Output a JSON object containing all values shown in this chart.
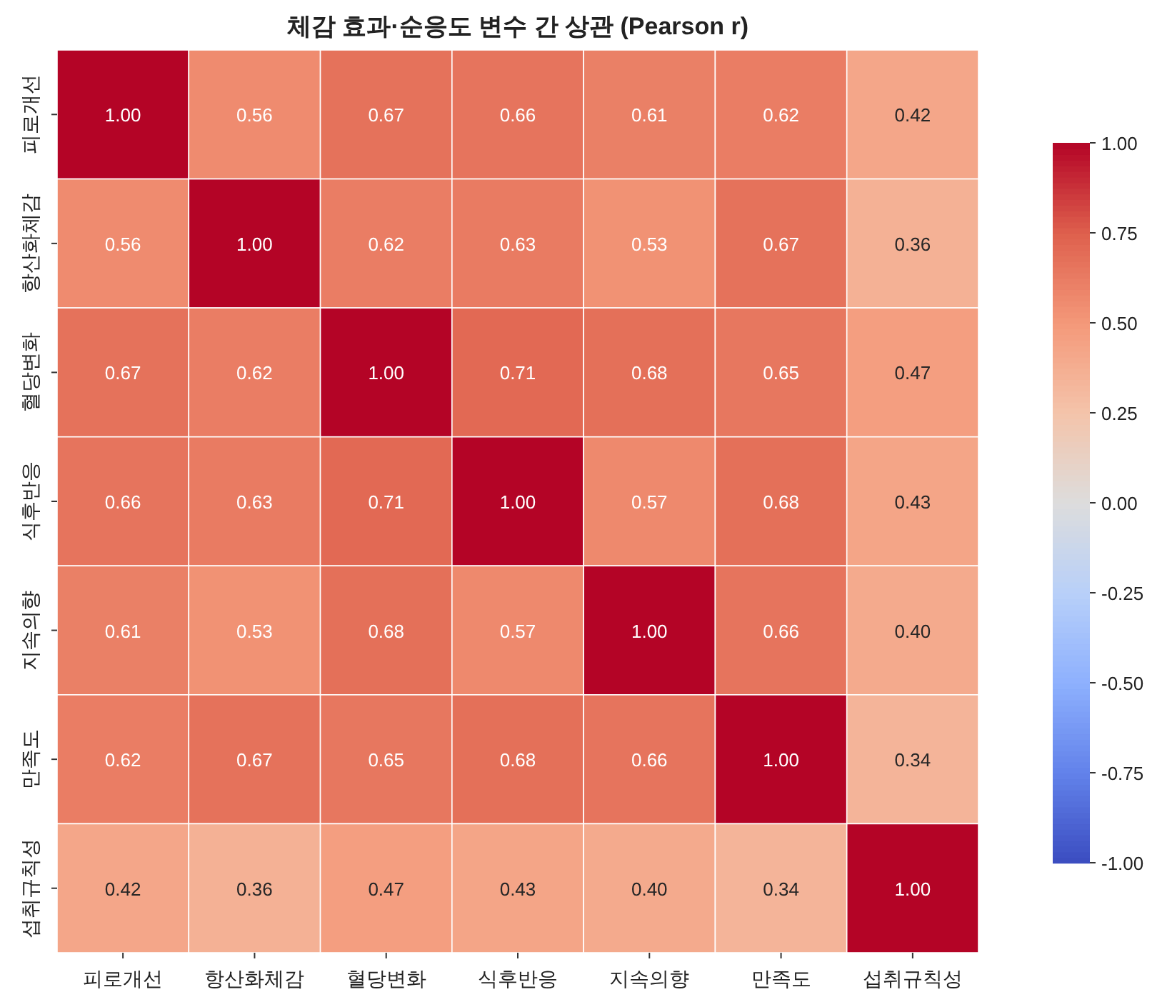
{
  "chart_data": {
    "type": "heatmap",
    "title": "체감 효과·순응도 변수 간 상관 (Pearson r)",
    "categories": [
      "피로개선",
      "항산화체감",
      "혈당변화",
      "식후반응",
      "지속의향",
      "만족도",
      "섭취규칙성"
    ],
    "y_categories": [
      "피로개선",
      "항산화체감",
      "혈당변화",
      "식후반응",
      "지속의향",
      "만족도",
      "섭취규칙성"
    ],
    "cells": [
      [
        1.0,
        0.56,
        0.67,
        0.66,
        0.61,
        0.62,
        0.42
      ],
      [
        0.56,
        1.0,
        0.62,
        0.63,
        0.53,
        0.67,
        0.36
      ],
      [
        0.67,
        0.62,
        1.0,
        0.71,
        0.68,
        0.65,
        0.47
      ],
      [
        0.66,
        0.63,
        0.71,
        1.0,
        0.57,
        0.68,
        0.43
      ],
      [
        0.61,
        0.53,
        0.68,
        0.57,
        1.0,
        0.66,
        0.4
      ],
      [
        0.62,
        0.67,
        0.65,
        0.68,
        0.66,
        1.0,
        0.34
      ],
      [
        0.42,
        0.36,
        0.47,
        0.43,
        0.4,
        0.34,
        1.0
      ]
    ],
    "cell_labels": [
      [
        "1.00",
        "0.56",
        "0.67",
        "0.66",
        "0.61",
        "0.62",
        "0.42"
      ],
      [
        "0.56",
        "1.00",
        "0.62",
        "0.63",
        "0.53",
        "0.67",
        "0.36"
      ],
      [
        "0.67",
        "0.62",
        "1.00",
        "0.71",
        "0.68",
        "0.65",
        "0.47"
      ],
      [
        "0.66",
        "0.63",
        "0.71",
        "1.00",
        "0.57",
        "0.68",
        "0.43"
      ],
      [
        "0.61",
        "0.53",
        "0.68",
        "0.57",
        "1.00",
        "0.66",
        "0.40"
      ],
      [
        "0.62",
        "0.67",
        "0.65",
        "0.68",
        "0.66",
        "1.00",
        "0.34"
      ],
      [
        "0.42",
        "0.36",
        "0.47",
        "0.43",
        "0.40",
        "0.34",
        "1.00"
      ]
    ],
    "clim": [
      -1,
      1
    ],
    "cticks": [
      {
        "value": 1,
        "label": "1.00"
      },
      {
        "value": 0.75,
        "label": "0.75"
      },
      {
        "value": 0.5,
        "label": "0.50"
      },
      {
        "value": 0.25,
        "label": "0.25"
      },
      {
        "value": 0,
        "label": "0.00"
      },
      {
        "value": -0.25,
        "label": "-0.25"
      },
      {
        "value": -0.5,
        "label": "-0.50"
      },
      {
        "value": -0.75,
        "label": "-0.75"
      },
      {
        "value": -1,
        "label": "-1.00"
      }
    ]
  }
}
